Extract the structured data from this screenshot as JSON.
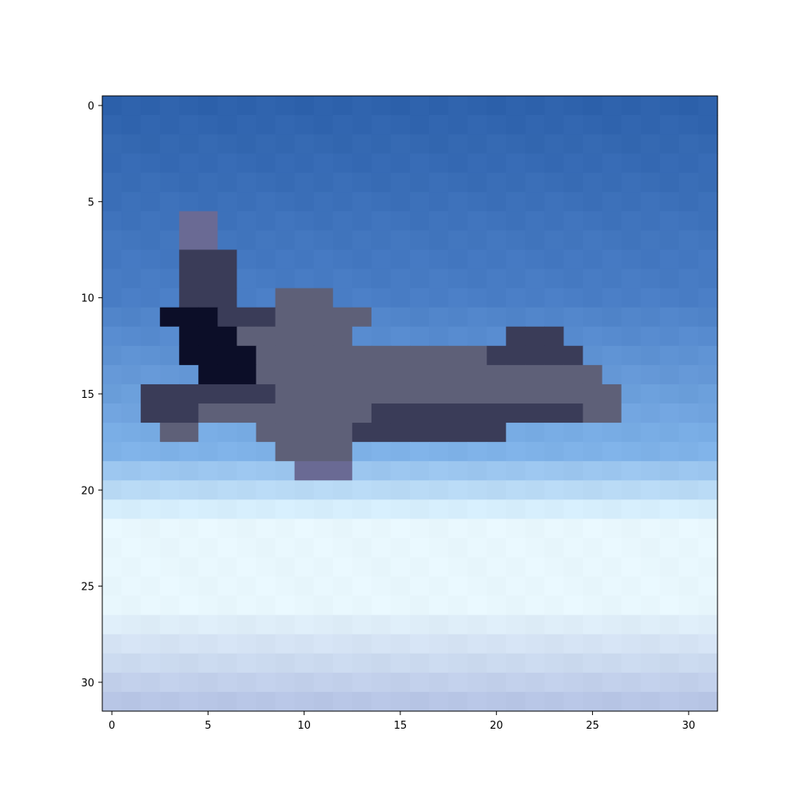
{
  "figure": {
    "title": "",
    "kind": "pixelated image shown with imshow (32x32 pixels)",
    "subject": "airplane flying over cloud layer against blue sky",
    "background": "#ffffff"
  },
  "image": {
    "grid_rows": 32,
    "grid_cols": 32,
    "colors": {
      "sky_top": "#2e62ac",
      "sky_mid": "#4a7ec6",
      "sky_lower": "#7fb2e8",
      "haze": "#d6eefc",
      "cloud_bright": "#e8f7fd",
      "cloud_shadow": "#b8c6e6",
      "fuselage": "#5e6078",
      "fuselage_dark": "#3a3c58",
      "cockpit": "#0c0e28",
      "tail": "#6a6a94"
    }
  },
  "axes": {
    "x_ticks": [
      "0",
      "5",
      "10",
      "15",
      "20",
      "25",
      "30"
    ],
    "y_ticks": [
      "0",
      "5",
      "10",
      "15",
      "20",
      "25",
      "30"
    ],
    "x_tick_values": [
      0,
      5,
      10,
      15,
      20,
      25,
      30
    ],
    "y_tick_values": [
      0,
      5,
      10,
      15,
      20,
      25,
      30
    ],
    "xlim": [
      -0.5,
      31.5
    ],
    "ylim": [
      31.5,
      -0.5
    ]
  }
}
